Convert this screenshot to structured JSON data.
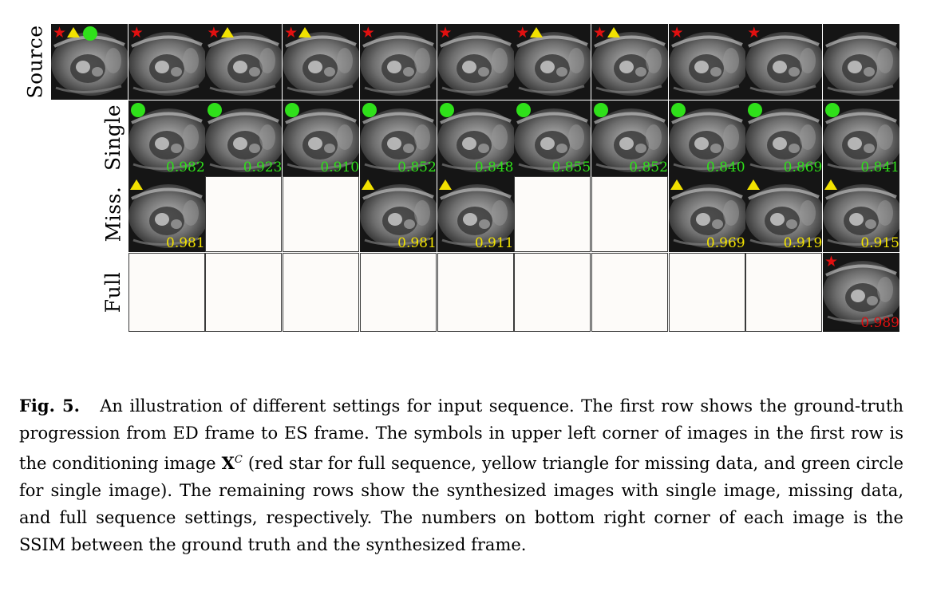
{
  "figure": {
    "row_labels": [
      "Source",
      "Single",
      "Miss.",
      "Full"
    ],
    "rows": [
      {
        "name": "source",
        "cells": [
          {
            "image": true,
            "symbols": [
              "star",
              "triangle",
              "circle"
            ]
          },
          {
            "image": true,
            "symbols": [
              "star"
            ]
          },
          {
            "image": true,
            "symbols": [
              "star",
              "triangle"
            ]
          },
          {
            "image": true,
            "symbols": [
              "star",
              "triangle"
            ]
          },
          {
            "image": true,
            "symbols": [
              "star"
            ]
          },
          {
            "image": true,
            "symbols": [
              "star"
            ]
          },
          {
            "image": true,
            "symbols": [
              "star",
              "triangle"
            ]
          },
          {
            "image": true,
            "symbols": [
              "star",
              "triangle"
            ]
          },
          {
            "image": true,
            "symbols": [
              "star"
            ]
          },
          {
            "image": true,
            "symbols": [
              "star"
            ]
          },
          {
            "image": true,
            "symbols": []
          }
        ]
      },
      {
        "name": "single",
        "ssim_color": "#2fe01a",
        "cells": [
          {
            "image": true,
            "symbols": [
              "circle"
            ],
            "ssim": "0.982"
          },
          {
            "image": true,
            "symbols": [
              "circle"
            ],
            "ssim": "0.923"
          },
          {
            "image": true,
            "symbols": [
              "circle"
            ],
            "ssim": "0.910"
          },
          {
            "image": true,
            "symbols": [
              "circle"
            ],
            "ssim": "0.852"
          },
          {
            "image": true,
            "symbols": [
              "circle"
            ],
            "ssim": "0.848"
          },
          {
            "image": true,
            "symbols": [
              "circle"
            ],
            "ssim": "0.855"
          },
          {
            "image": true,
            "symbols": [
              "circle"
            ],
            "ssim": "0.852"
          },
          {
            "image": true,
            "symbols": [
              "circle"
            ],
            "ssim": "0.840"
          },
          {
            "image": true,
            "symbols": [
              "circle"
            ],
            "ssim": "0.869"
          },
          {
            "image": true,
            "symbols": [
              "circle"
            ],
            "ssim": "0.841"
          }
        ]
      },
      {
        "name": "missing",
        "ssim_color": "#f2e200",
        "cells": [
          {
            "image": true,
            "symbols": [
              "triangle"
            ],
            "ssim": "0.981"
          },
          {
            "image": false
          },
          {
            "image": false
          },
          {
            "image": true,
            "symbols": [
              "triangle"
            ],
            "ssim": "0.981"
          },
          {
            "image": true,
            "symbols": [
              "triangle"
            ],
            "ssim": "0.911"
          },
          {
            "image": false
          },
          {
            "image": false
          },
          {
            "image": true,
            "symbols": [
              "triangle"
            ],
            "ssim": "0.969"
          },
          {
            "image": true,
            "symbols": [
              "triangle"
            ],
            "ssim": "0.919"
          },
          {
            "image": true,
            "symbols": [
              "triangle"
            ],
            "ssim": "0.915"
          }
        ]
      },
      {
        "name": "full",
        "ssim_color": "#e01010",
        "cells": [
          {
            "image": false
          },
          {
            "image": false
          },
          {
            "image": false
          },
          {
            "image": false
          },
          {
            "image": false
          },
          {
            "image": false
          },
          {
            "image": false
          },
          {
            "image": false
          },
          {
            "image": false
          },
          {
            "image": true,
            "symbols": [
              "star"
            ],
            "ssim": "0.989"
          }
        ]
      }
    ]
  },
  "caption": {
    "label": "Fig. 5.",
    "text_1": "An illustration of different settings for input sequence. The first row shows the ground-truth progression from ED frame to ES frame. The symbols in upper left corner of images in the first row is the conditioning image ",
    "math_symbol": "X",
    "math_superscript": "C",
    "text_2": " (red star for full sequence, yellow triangle for missing data, and green circle for single image). The remaining rows show the synthesized images with single image, missing data, and full sequence settings, respectively. The numbers on bottom right corner of each image is the SSIM between the ground truth and the synthesized frame."
  }
}
